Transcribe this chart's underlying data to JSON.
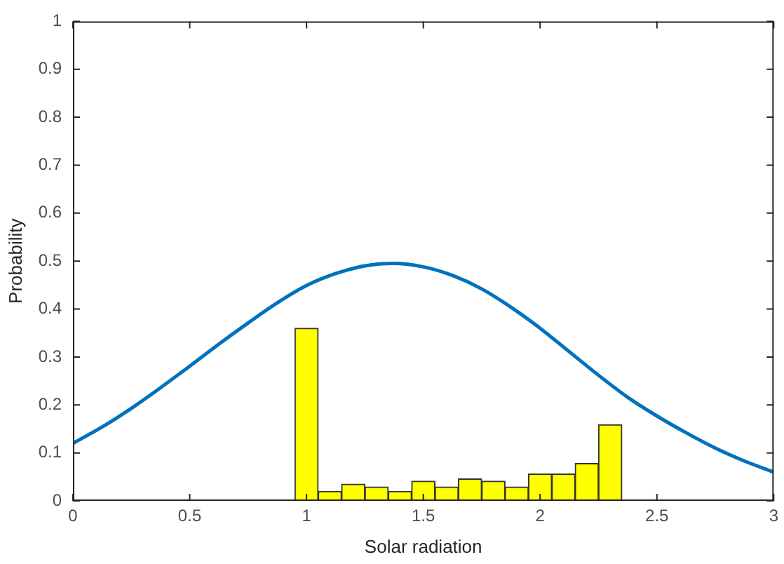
{
  "chart_data": {
    "type": "histogram",
    "xlabel": "Solar radiation",
    "ylabel": "Probability",
    "bins": [
      0.95,
      1.05,
      1.15,
      1.25,
      1.35,
      1.45,
      1.55,
      1.65,
      1.75,
      1.85,
      1.95,
      2.05,
      2.15,
      2.25,
      2.35
    ],
    "values": [
      0.36,
      0.02,
      0.035,
      0.029,
      0.02,
      0.041,
      0.029,
      0.046,
      0.041,
      0.029,
      0.056,
      0.056,
      0.078,
      0.159
    ],
    "color": "#ffff00",
    "series": [
      {
        "type": "line",
        "color": "#0072bd",
        "x": [
          0,
          0.125,
          0.25,
          0.375,
          0.5,
          0.625,
          0.75,
          0.875,
          1,
          1.125,
          1.25,
          1.375,
          1.5,
          1.625,
          1.75,
          1.875,
          2,
          2.125,
          2.25,
          2.375,
          2.5,
          2.625,
          2.75,
          2.875,
          3
        ],
        "values": [
          0.12,
          0.154,
          0.193,
          0.236,
          0.281,
          0.327,
          0.371,
          0.413,
          0.449,
          0.474,
          0.49,
          0.495,
          0.488,
          0.47,
          0.442,
          0.404,
          0.36,
          0.311,
          0.262,
          0.216,
          0.177,
          0.142,
          0.11,
          0.083,
          0.06
        ]
      }
    ],
    "xlim": [
      0,
      3
    ],
    "xticks": [
      0,
      0.5,
      1,
      1.5,
      2,
      2.5,
      3
    ],
    "ylim": [
      0,
      1
    ],
    "yticks": [
      0,
      0.1,
      0.2,
      0.3,
      0.4,
      0.5,
      0.6,
      0.7,
      0.8,
      0.9,
      1
    ],
    "grid": false,
    "legend": false,
    "marker": "none",
    "line_style": "solid"
  }
}
